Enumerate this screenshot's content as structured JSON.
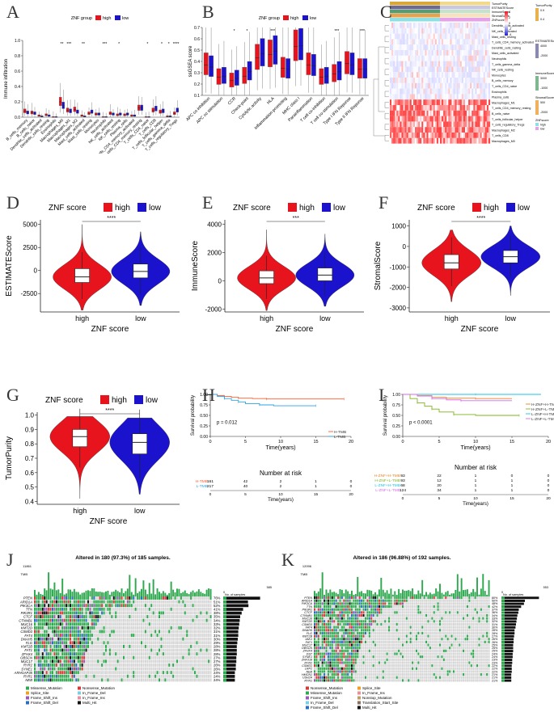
{
  "panels": {
    "A": "A",
    "B": "B",
    "C": "C",
    "D": "D",
    "E": "E",
    "F": "F",
    "G": "G",
    "H": "H",
    "I": "I",
    "J": "J",
    "K": "K"
  },
  "colors": {
    "high": "#e8141d",
    "low": "#1a12cc",
    "htmb": "#ff5a2d",
    "ltmb": "#2aa3e6",
    "hh": "#f0801f",
    "hl": "#7fb51f",
    "lh": "#18c4e8",
    "ll": "#d86ae8"
  },
  "common": {
    "group_high": "high",
    "group_low": "low",
    "sig4": "****",
    "sig3": "***",
    "numrisk": "Number at risk",
    "time_label": "Time(years)",
    "surv_label": "Survival probability"
  },
  "chart_data": [
    {
      "id": "A",
      "type": "box",
      "legend_title": "ZNF group",
      "ylabel": "Immune infiltration",
      "ylim": [
        0,
        1.0
      ],
      "categories": [
        "B_cells_memory",
        "B_cells_naive",
        "Dendritic_cells_activated",
        "Dendritic_cells_resting",
        "Eosinophils",
        "Macrophages_M0",
        "Macrophages_M1",
        "Macrophages_M2",
        "Mast_cells_activated",
        "Mast_cells_resting",
        "Monocytes",
        "Neutrophils",
        "NK_cells_activated",
        "NK_cells_resting",
        "Plasma_cells",
        "T_cells_CD4_memory_activated",
        "T_cells_CD4_memory_resting",
        "T_cells_CD4_naive",
        "T_cells_CD8",
        "T_cells_follicular_helper",
        "T_cells_gamma_delta",
        "T_cells_regulatory_Tregs"
      ],
      "yticks": [
        "0.0",
        "0.2",
        "0.4",
        "0.6",
        "0.8",
        "1.0"
      ],
      "sig": [
        "",
        "",
        "",
        "",
        "",
        "**",
        "***",
        "",
        "**",
        "",
        "",
        "***",
        "",
        "*",
        "",
        "",
        "",
        "*",
        "",
        "*",
        "*",
        "****"
      ],
      "high_median": [
        0.08,
        0.06,
        0.02,
        0.03,
        0.0,
        0.2,
        0.09,
        0.1,
        0.02,
        0.05,
        0.04,
        0.0,
        0.05,
        0.03,
        0.03,
        0.02,
        0.12,
        0.0,
        0.09,
        0.07,
        0.01,
        0.05
      ],
      "low_median": [
        0.06,
        0.05,
        0.01,
        0.02,
        0.0,
        0.15,
        0.08,
        0.07,
        0.01,
        0.07,
        0.04,
        0.0,
        0.04,
        0.04,
        0.04,
        0.02,
        0.12,
        0.0,
        0.11,
        0.08,
        0.01,
        0.09
      ]
    },
    {
      "id": "B",
      "type": "box",
      "legend_title": "ZNF group",
      "ylabel": "ssGSEA score",
      "ylim": [
        0.1,
        0.7
      ],
      "categories": [
        "APC co inhibition",
        "APC co stimulation",
        "CCR",
        "Check-point",
        "Cytolytic activity",
        "HLA",
        "Inflammation-promoting",
        "MHC class I",
        "Parainflammation",
        "T cell co-inhibition",
        "T cell co-stimulation",
        "Type I IFN Reponse",
        "Type II IFN Reponse"
      ],
      "yticks": [
        "0.1",
        "0.2",
        "0.3",
        "0.4",
        "0.5",
        "0.6",
        "0.7"
      ],
      "sig": [
        "",
        "",
        "*",
        "*",
        "",
        "***",
        "",
        "",
        "",
        "",
        "***",
        "",
        "***"
      ],
      "high_median": [
        0.37,
        0.26,
        0.23,
        0.27,
        0.43,
        0.46,
        0.34,
        0.53,
        0.37,
        0.26,
        0.29,
        0.38,
        0.33
      ],
      "low_median": [
        0.35,
        0.27,
        0.25,
        0.31,
        0.47,
        0.49,
        0.33,
        0.54,
        0.36,
        0.27,
        0.31,
        0.37,
        0.33
      ]
    },
    {
      "id": "C",
      "type": "heatmap",
      "top_tracks": [
        "TumorPurity",
        "ESTIMATEScore",
        "ImmuneScore",
        "StromalScore",
        "ZNFscore"
      ],
      "rows": [
        "Dendritic_cells_activated",
        "NK_cells_activated",
        "Mast_cells_resting",
        "T_cells_CD4_memory_activated",
        "Dendritic_cells_resting",
        "Mast_cells_activated",
        "Neutrophils",
        "T_cells_gamma_delta",
        "NK_cells_resting",
        "Monocytes",
        "B_cells_memory",
        "T_cells_CD4_naive",
        "Eosinophils",
        "Plasma_cells",
        "Macrophages_M1",
        "T_cells_CD4_memory_resting",
        "B_cells_naive",
        "T_cells_follicular_helper",
        "T_cells_regulatory_Tregs",
        "Macrophages_M2",
        "T_cells_CD8",
        "Macrophages_M0"
      ],
      "legend": {
        "main_ticks": [
          "4",
          "2",
          "0",
          "-2",
          "-4"
        ],
        "tp_title": "TumorPurity",
        "tp_ticks": [
          "0.9",
          "0.4"
        ],
        "est_title": "ESTIMATEScore",
        "est_ticks": [
          "4000",
          "-2000"
        ],
        "imm_title": "ImmuneScore",
        "imm_ticks": [
          "3000",
          "-1000"
        ],
        "str_title": "StromalScore",
        "str_ticks": [
          "500",
          "-2000"
        ],
        "znf_title": "ZNFscore",
        "znf_items": [
          "high",
          "low"
        ]
      }
    },
    {
      "id": "D",
      "type": "violin",
      "title": "ZNF score",
      "ylabel": "ESTIMATEScore",
      "xlabel": "ZNF score",
      "sig": "****",
      "yticks": [
        "5000",
        "2500",
        "0",
        "-2500"
      ],
      "yrange": [
        -4500,
        5500
      ],
      "high": {
        "median": -700,
        "q1": -1300,
        "q3": 200,
        "min": -4300,
        "max": 5000
      },
      "low": {
        "median": -100,
        "q1": -800,
        "q3": 700,
        "min": -3800,
        "max": 4200
      }
    },
    {
      "id": "E",
      "type": "violin",
      "title": "ZNF score",
      "ylabel": "ImmuneScore",
      "xlabel": "ZNF score",
      "sig": "***",
      "yticks": [
        "4000",
        "2000",
        "0",
        "-2000"
      ],
      "yrange": [
        -2200,
        4300
      ],
      "high": {
        "median": 200,
        "q1": -200,
        "q3": 700,
        "min": -2100,
        "max": 3600
      },
      "low": {
        "median": 400,
        "q1": 0,
        "q3": 900,
        "min": -1800,
        "max": 3300
      }
    },
    {
      "id": "F",
      "type": "violin",
      "title": "ZNF score",
      "ylabel": "StromalScore",
      "xlabel": "ZNF score",
      "sig": "****",
      "yticks": [
        "1000",
        "0",
        "-1000",
        "-2000",
        "-3000"
      ],
      "yrange": [
        -3200,
        1300
      ],
      "high": {
        "median": -800,
        "q1": -1100,
        "q3": -400,
        "min": -2700,
        "max": 800
      },
      "low": {
        "median": -500,
        "q1": -800,
        "q3": -200,
        "min": -2400,
        "max": 1000
      }
    },
    {
      "id": "G",
      "type": "violin",
      "title": "ZNF score",
      "ylabel": "TumorPurity",
      "xlabel": "ZNF score",
      "sig": "****",
      "yticks": [
        "1.0",
        "0.9",
        "0.8",
        "0.7",
        "0.6",
        "0.5",
        "0.4"
      ],
      "yrange": [
        0.38,
        1.02
      ],
      "high": {
        "median": 0.85,
        "q1": 0.78,
        "q3": 0.9,
        "min": 0.42,
        "max": 0.99
      },
      "low": {
        "median": 0.81,
        "q1": 0.73,
        "q3": 0.87,
        "min": 0.45,
        "max": 0.98
      }
    },
    {
      "id": "H",
      "type": "km",
      "pvalue": "p = 0.012",
      "ylabel": "Survival probability",
      "xlabel": "Time(years)",
      "yticks": [
        "0.00",
        "0.25",
        "0.50",
        "0.75",
        "1.00"
      ],
      "xticks": [
        "0",
        "5",
        "10",
        "15",
        "20"
      ],
      "series": [
        {
          "name": "H-TMB",
          "color": "#ff5a2d",
          "risk": [
            "161",
            "42",
            "2",
            "1",
            "0"
          ],
          "points": [
            [
              0,
              1
            ],
            [
              1,
              0.97
            ],
            [
              2,
              0.95
            ],
            [
              3,
              0.93
            ],
            [
              4,
              0.91
            ],
            [
              6,
              0.9
            ],
            [
              8,
              0.89
            ],
            [
              14,
              0.89
            ],
            [
              19,
              0.89
            ]
          ]
        },
        {
          "name": "L-TMB",
          "color": "#2aa3e6",
          "risk": [
            "217",
            "40",
            "2",
            "1",
            "0"
          ],
          "points": [
            [
              0,
              1
            ],
            [
              1,
              0.95
            ],
            [
              2,
              0.9
            ],
            [
              3,
              0.86
            ],
            [
              4,
              0.82
            ],
            [
              5,
              0.78
            ],
            [
              7,
              0.75
            ],
            [
              9,
              0.73
            ],
            [
              15,
              0.73
            ]
          ]
        }
      ]
    },
    {
      "id": "I",
      "type": "km",
      "pvalue": "p < 0.0001",
      "ylabel": "Survival probability",
      "xlabel": "Time(years)",
      "yticks": [
        "0.00",
        "0.25",
        "0.50",
        "0.75",
        "1.00"
      ],
      "xticks": [
        "0",
        "5",
        "10",
        "15",
        "20"
      ],
      "series": [
        {
          "name": "H-ZNF+H-TMB",
          "color": "#f0801f",
          "risk": [
            "93",
            "22",
            "1",
            "0",
            "0"
          ],
          "points": [
            [
              0,
              1
            ],
            [
              2,
              0.97
            ],
            [
              4,
              0.93
            ],
            [
              6,
              0.91
            ],
            [
              10,
              0.9
            ],
            [
              15,
              0.9
            ]
          ]
        },
        {
          "name": "H-ZNF+L-TMB",
          "color": "#7fb51f",
          "risk": [
            "93",
            "12",
            "1",
            "1",
            "0"
          ],
          "points": [
            [
              0,
              1
            ],
            [
              1,
              0.9
            ],
            [
              2,
              0.8
            ],
            [
              3,
              0.72
            ],
            [
              4,
              0.65
            ],
            [
              5,
              0.58
            ],
            [
              7,
              0.52
            ],
            [
              10,
              0.5
            ],
            [
              16,
              0.5
            ]
          ]
        },
        {
          "name": "L-ZNF+H-TMB",
          "color": "#18c4e8",
          "risk": [
            "68",
            "20",
            "1",
            "1",
            "0"
          ],
          "points": [
            [
              0,
              1
            ],
            [
              5,
              1
            ],
            [
              10,
              1
            ],
            [
              19,
              1
            ]
          ]
        },
        {
          "name": "L-ZNF+L-TMB",
          "color": "#d86ae8",
          "risk": [
            "124",
            "34",
            "1",
            "1",
            "0"
          ],
          "points": [
            [
              0,
              1
            ],
            [
              2,
              0.96
            ],
            [
              4,
              0.9
            ],
            [
              6,
              0.87
            ],
            [
              8,
              0.85
            ],
            [
              15,
              0.85
            ]
          ]
        }
      ]
    },
    {
      "id": "J",
      "type": "oncoplot",
      "title": "Altered in 180 (97.3%) of 185 samples.",
      "tmb_max": "11861",
      "tmb_label": "TMB",
      "count_max": "585",
      "count_label": "No. of samples",
      "genes": [
        "PTEN",
        "ARID1A",
        "PIK3CA",
        "TTN",
        "PIK3R1",
        "CTCF",
        "CTNNB1",
        "MUC16",
        "KMT2D",
        "CSMD3",
        "FAT4",
        "DNAH5",
        "FLG",
        "KMT2B",
        "FAT1",
        "ZFHX4",
        "OBSCN",
        "MUC17",
        "RYR2",
        "SYNE1",
        "ARHGAP35",
        "RYR1",
        "NEB"
      ],
      "pcts": [
        "76%",
        "51%",
        "52%",
        "41%",
        "38%",
        "35%",
        "34%",
        "33%",
        "32%",
        "31%",
        "31%",
        "30%",
        "29%",
        "28%",
        "28%",
        "28%",
        "27%",
        "27%",
        "26%",
        "26%",
        "24%",
        "24%",
        "24%"
      ],
      "legend": [
        "Missense_Mutation",
        "Nonsense_Mutation",
        "Splice_Site",
        "In_Frame_Del",
        "Frame_Shift_Ins",
        "In_Frame_Ins",
        "Frame_Shift_Del",
        "Multi_Hit"
      ]
    },
    {
      "id": "K",
      "type": "oncoplot",
      "title": "Altered in 186 (96.88%) of 192 samples.",
      "tmb_max": "12096",
      "tmb_label": "TMB",
      "count_max": "553",
      "count_label": "No. of samples",
      "genes": [
        "PTEN",
        "ARID1A",
        "PIK3CA",
        "TTN",
        "PIK3R1",
        "CTCF",
        "CTNNB1",
        "MUC16",
        "KMT2D",
        "CSMD3",
        "FAT4",
        "DNAH5",
        "FLG",
        "KMT2B",
        "JAK1",
        "FAT1",
        "MUC17",
        "OBSCN",
        "ZFHX4",
        "DST",
        "SYNE1",
        "ZNF318",
        "RYR2",
        "CSMD1",
        "LRP2",
        "NEB",
        "HMCN1",
        "USH2A",
        "RYR1"
      ],
      "pcts": [
        "80%",
        "50%",
        "48%",
        "42%",
        "37%",
        "36%",
        "34%",
        "33%",
        "32%",
        "31%",
        "30%",
        "28%",
        "28%",
        "27%",
        "26%",
        "26%",
        "25%",
        "25%",
        "25%",
        "24%",
        "24%",
        "23%",
        "23%",
        "22%",
        "22%",
        "22%",
        "21%",
        "21%",
        "21%"
      ],
      "legend": [
        "Nonsense_Mutation",
        "Splice_Site",
        "Missense_Mutation",
        "In_Frame_Ins",
        "Frame_Shift_Ins",
        "Nonstop_Mutation",
        "In_Frame_Del",
        "Translation_Start_Site",
        "Frame_Shift_Del",
        "Multi_Hit"
      ]
    }
  ]
}
